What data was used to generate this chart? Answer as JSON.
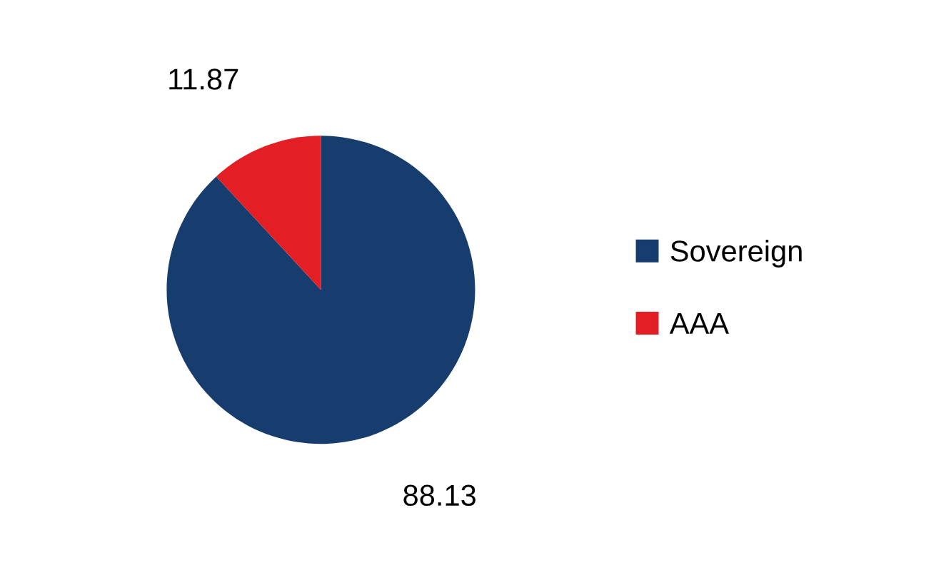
{
  "chart_data": {
    "type": "pie",
    "categories": [
      "Sovereign",
      "AAA"
    ],
    "values": [
      88.13,
      11.87
    ],
    "colors": [
      "#173c6e",
      "#e31e24"
    ],
    "data_labels": true,
    "legend": "right"
  }
}
